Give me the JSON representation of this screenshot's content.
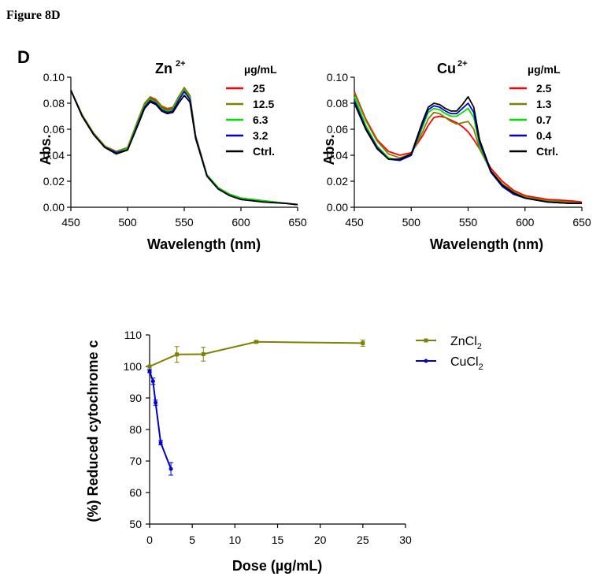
{
  "figure_title": "Figure 8D",
  "panel_letter": "D",
  "chart_data": [
    {
      "type": "line",
      "title": "Zn",
      "title_sup": "2+",
      "xlabel": "Wavelength (nm)",
      "ylabel": "Abs.",
      "xlim": [
        450,
        650
      ],
      "ylim": [
        0,
        0.1
      ],
      "xticks": [
        "450",
        "500",
        "550",
        "600",
        "650"
      ],
      "yticks": [
        "0.00",
        "0.02",
        "0.04",
        "0.06",
        "0.08",
        "0.10"
      ],
      "legend_title": "µg/mL",
      "x": [
        450,
        460,
        470,
        480,
        490,
        500,
        510,
        515,
        520,
        525,
        530,
        535,
        540,
        545,
        550,
        555,
        560,
        570,
        580,
        590,
        600,
        620,
        640,
        650
      ],
      "series": [
        {
          "name": "25",
          "color": "#ff0000",
          "values": [
            0.09,
            0.071,
            0.057,
            0.047,
            0.043,
            0.045,
            0.068,
            0.079,
            0.084,
            0.082,
            0.077,
            0.075,
            0.076,
            0.084,
            0.092,
            0.085,
            0.055,
            0.025,
            0.015,
            0.01,
            0.007,
            0.005,
            0.003,
            0.002
          ]
        },
        {
          "name": "12.5",
          "color": "#808000",
          "values": [
            0.09,
            0.071,
            0.057,
            0.047,
            0.043,
            0.046,
            0.069,
            0.08,
            0.085,
            0.083,
            0.078,
            0.076,
            0.077,
            0.085,
            0.092,
            0.086,
            0.055,
            0.025,
            0.015,
            0.01,
            0.007,
            0.005,
            0.003,
            0.002
          ]
        },
        {
          "name": "6.3",
          "color": "#00dd00",
          "values": [
            0.09,
            0.07,
            0.056,
            0.046,
            0.042,
            0.045,
            0.067,
            0.078,
            0.083,
            0.081,
            0.076,
            0.074,
            0.075,
            0.083,
            0.09,
            0.084,
            0.054,
            0.025,
            0.015,
            0.01,
            0.007,
            0.005,
            0.003,
            0.002
          ]
        },
        {
          "name": "3.2",
          "color": "#0000dd",
          "values": [
            0.09,
            0.07,
            0.056,
            0.046,
            0.042,
            0.044,
            0.066,
            0.077,
            0.082,
            0.08,
            0.075,
            0.073,
            0.074,
            0.082,
            0.089,
            0.083,
            0.054,
            0.024,
            0.014,
            0.009,
            0.006,
            0.004,
            0.003,
            0.002
          ]
        },
        {
          "name": "Ctrl.",
          "color": "#000000",
          "values": [
            0.09,
            0.07,
            0.056,
            0.046,
            0.041,
            0.044,
            0.065,
            0.076,
            0.081,
            0.079,
            0.074,
            0.072,
            0.073,
            0.08,
            0.086,
            0.081,
            0.053,
            0.024,
            0.014,
            0.009,
            0.006,
            0.004,
            0.003,
            0.002
          ]
        }
      ]
    },
    {
      "type": "line",
      "title": "Cu",
      "title_sup": "2+",
      "xlabel": "Wavelength (nm)",
      "ylabel": "Abs.",
      "xlim": [
        450,
        650
      ],
      "ylim": [
        0,
        0.1
      ],
      "xticks": [
        "450",
        "500",
        "550",
        "600",
        "650"
      ],
      "yticks": [
        "0.00",
        "0.02",
        "0.04",
        "0.06",
        "0.08",
        "0.10"
      ],
      "legend_title": "µg/mL",
      "x": [
        450,
        460,
        470,
        480,
        490,
        500,
        510,
        515,
        520,
        525,
        530,
        535,
        540,
        545,
        550,
        555,
        560,
        570,
        580,
        590,
        600,
        620,
        640,
        650
      ],
      "series": [
        {
          "name": "2.5",
          "color": "#ff0000",
          "values": [
            0.089,
            0.068,
            0.052,
            0.043,
            0.04,
            0.042,
            0.055,
            0.063,
            0.069,
            0.07,
            0.069,
            0.067,
            0.065,
            0.062,
            0.058,
            0.052,
            0.045,
            0.03,
            0.02,
            0.013,
            0.009,
            0.006,
            0.005,
            0.004
          ]
        },
        {
          "name": "1.3",
          "color": "#808000",
          "values": [
            0.088,
            0.067,
            0.051,
            0.041,
            0.038,
            0.041,
            0.058,
            0.068,
            0.073,
            0.072,
            0.069,
            0.066,
            0.064,
            0.065,
            0.066,
            0.06,
            0.045,
            0.028,
            0.018,
            0.012,
            0.008,
            0.005,
            0.004,
            0.003
          ]
        },
        {
          "name": "0.7",
          "color": "#00dd00",
          "values": [
            0.085,
            0.063,
            0.047,
            0.038,
            0.036,
            0.04,
            0.062,
            0.073,
            0.076,
            0.075,
            0.072,
            0.07,
            0.07,
            0.073,
            0.076,
            0.069,
            0.048,
            0.027,
            0.016,
            0.01,
            0.007,
            0.004,
            0.003,
            0.003
          ]
        },
        {
          "name": "0.4",
          "color": "#0000dd",
          "values": [
            0.082,
            0.061,
            0.046,
            0.037,
            0.036,
            0.04,
            0.064,
            0.075,
            0.078,
            0.077,
            0.074,
            0.072,
            0.072,
            0.076,
            0.08,
            0.073,
            0.05,
            0.027,
            0.016,
            0.01,
            0.007,
            0.004,
            0.003,
            0.003
          ]
        },
        {
          "name": "Ctrl.",
          "color": "#000000",
          "values": [
            0.08,
            0.06,
            0.045,
            0.037,
            0.037,
            0.041,
            0.066,
            0.077,
            0.08,
            0.079,
            0.076,
            0.074,
            0.074,
            0.079,
            0.085,
            0.077,
            0.052,
            0.028,
            0.017,
            0.011,
            0.007,
            0.004,
            0.003,
            0.003
          ]
        }
      ]
    },
    {
      "type": "line",
      "title": "",
      "xlabel": "Dose (µg/mL)",
      "ylabel": "(%) Reduced cytochrome c",
      "xlim": [
        0,
        30
      ],
      "ylim": [
        50,
        110
      ],
      "xticks": [
        "0",
        "5",
        "10",
        "15",
        "20",
        "25",
        "30"
      ],
      "yticks": [
        "50",
        "60",
        "70",
        "80",
        "90",
        "100",
        "110"
      ],
      "series": [
        {
          "name": "ZnCl",
          "name_sub": "2",
          "color": "#808000",
          "marker": "square",
          "x": [
            0,
            3.2,
            6.3,
            12.5,
            25
          ],
          "values": [
            100,
            103.8,
            103.9,
            107.8,
            107.4
          ],
          "errors": [
            0,
            2.5,
            2.2,
            0.4,
            1.0
          ]
        },
        {
          "name": "CuCl",
          "name_sub": "2",
          "color": "#0000cc",
          "marker": "circle",
          "x": [
            0,
            0.4,
            0.7,
            1.3,
            2.5
          ],
          "values": [
            98.5,
            95.3,
            88.5,
            75.8,
            67.5
          ],
          "errors": [
            0.5,
            1.0,
            0.8,
            0.7,
            2.0
          ]
        }
      ]
    }
  ]
}
